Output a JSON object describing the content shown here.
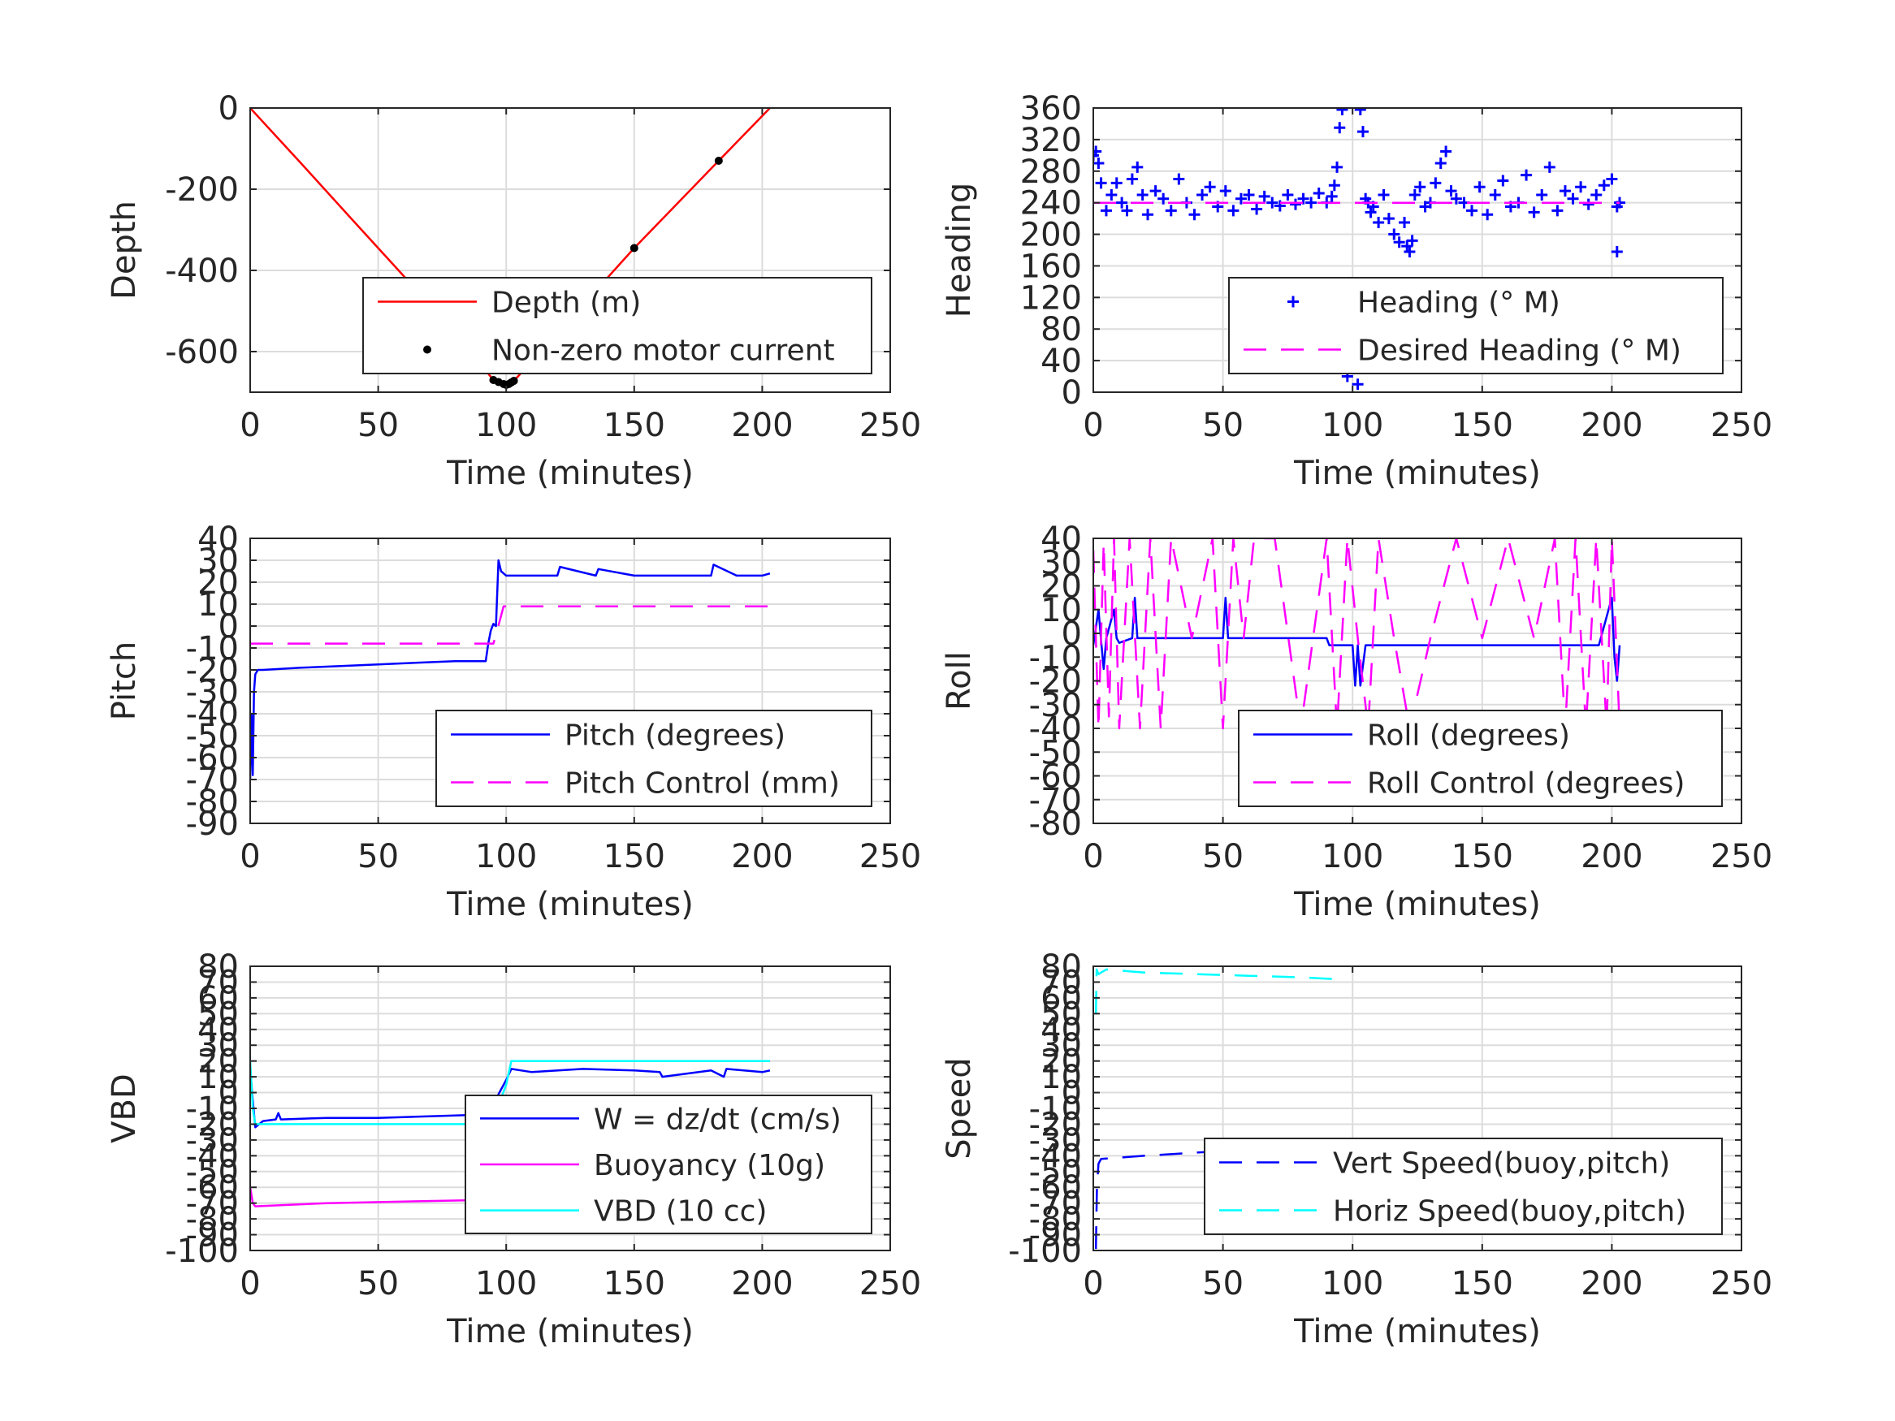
{
  "colors": {
    "red": "#ff0000",
    "blue": "#0000ff",
    "magenta": "#ff00ff",
    "cyan": "#00ffff",
    "black": "#000000",
    "grid": "#dcdcdc",
    "axis": "#262626"
  },
  "chart_data": [
    {
      "id": "depth",
      "type": "line",
      "xlabel": "Time (minutes)",
      "ylabel": "Depth",
      "xlim": [
        0,
        250
      ],
      "ylim": [
        -700,
        0
      ],
      "xticks": [
        0,
        50,
        100,
        150,
        200,
        250
      ],
      "xtick_labels": [
        "0",
        "50",
        "100",
        "150",
        "200",
        "250"
      ],
      "yticks": [
        0,
        -200,
        -400,
        -600
      ],
      "ytick_labels": [
        "0",
        "-200",
        "-400",
        "-600"
      ],
      "grid": true,
      "legend_position": "bottom-right",
      "series": [
        {
          "name": "Depth (m)",
          "kind": "line",
          "color": "red",
          "dash": "solid",
          "x": [
            0,
            20,
            40,
            60,
            80,
            95,
            100,
            103,
            120,
            150,
            183,
            203
          ],
          "y": [
            0,
            -137,
            -276,
            -414,
            -552,
            -670,
            -680,
            -672,
            -555,
            -345,
            -130,
            0
          ]
        },
        {
          "name": "Non-zero motor current",
          "kind": "points",
          "color": "black",
          "x": [
            95,
            97,
            99,
            100,
            101,
            102,
            103,
            150,
            183
          ],
          "y": [
            -670,
            -675,
            -680,
            -682,
            -680,
            -676,
            -672,
            -345,
            -130
          ]
        }
      ]
    },
    {
      "id": "heading",
      "type": "scatter",
      "xlabel": "Time (minutes)",
      "ylabel": "Heading",
      "xlim": [
        0,
        250
      ],
      "ylim": [
        0,
        360
      ],
      "xticks": [
        0,
        50,
        100,
        150,
        200,
        250
      ],
      "xtick_labels": [
        "0",
        "50",
        "100",
        "150",
        "200",
        "250"
      ],
      "yticks": [
        0,
        40,
        80,
        120,
        160,
        200,
        240,
        280,
        320,
        360
      ],
      "ytick_labels": [
        "0",
        "40",
        "80",
        "120",
        "160",
        "200",
        "240",
        "280",
        "320",
        "360"
      ],
      "grid": true,
      "legend_position": "bottom-right",
      "series": [
        {
          "name": "Heading (° M)",
          "kind": "plus",
          "color": "blue",
          "x": [
            0,
            1,
            2,
            3,
            5,
            7,
            9,
            11,
            13,
            15,
            17,
            19,
            21,
            24,
            27,
            30,
            33,
            36,
            39,
            42,
            45,
            48,
            51,
            54,
            57,
            60,
            63,
            66,
            69,
            72,
            75,
            78,
            81,
            84,
            87,
            90,
            92,
            93,
            94,
            95,
            96,
            97,
            98,
            99,
            100,
            101,
            102,
            103,
            104,
            105,
            106,
            107,
            108,
            110,
            112,
            114,
            116,
            118,
            120,
            121,
            122,
            123,
            124,
            126,
            128,
            130,
            132,
            134,
            136,
            138,
            140,
            143,
            146,
            149,
            152,
            155,
            158,
            161,
            164,
            167,
            170,
            173,
            176,
            179,
            182,
            185,
            188,
            191,
            194,
            197,
            200,
            202,
            203
          ],
          "y": [
            300,
            305,
            290,
            265,
            230,
            250,
            265,
            240,
            230,
            270,
            285,
            250,
            225,
            255,
            245,
            230,
            270,
            240,
            225,
            250,
            260,
            235,
            255,
            230,
            245,
            250,
            232,
            248,
            240,
            236,
            250,
            238,
            245,
            240,
            252,
            240,
            248,
            262,
            285,
            335,
            358,
            60,
            20,
            75,
            40,
            80,
            10,
            358,
            330,
            245,
            240,
            228,
            235,
            215,
            250,
            220,
            200,
            190,
            215,
            185,
            178,
            192,
            250,
            260,
            235,
            240,
            265,
            290,
            305,
            255,
            245,
            240,
            230,
            260,
            225,
            250,
            268,
            235,
            240,
            275,
            228,
            250,
            285,
            230,
            255,
            245,
            260,
            238,
            250,
            262,
            270,
            235,
            240
          ]
        },
        {
          "name": "",
          "kind": "plus",
          "color": "blue",
          "x": [
            202
          ],
          "y": [
            178
          ]
        },
        {
          "name": "Desired Heading (° M)",
          "kind": "line",
          "color": "magenta",
          "dash": "dash",
          "x": [
            0,
            95,
            104,
            203
          ],
          "y": [
            240,
            240,
            240,
            240
          ]
        }
      ]
    },
    {
      "id": "pitch",
      "type": "line",
      "xlabel": "Time (minutes)",
      "ylabel": "Pitch",
      "xlim": [
        0,
        250
      ],
      "ylim": [
        -90,
        40
      ],
      "xticks": [
        0,
        50,
        100,
        150,
        200,
        250
      ],
      "xtick_labels": [
        "0",
        "50",
        "100",
        "150",
        "200",
        "250"
      ],
      "yticks": [
        40,
        30,
        20,
        10,
        0,
        -10,
        -20,
        -30,
        -40,
        -50,
        -60,
        -70,
        -80,
        -90
      ],
      "ytick_labels": [
        "40",
        "30",
        "20",
        "10",
        "0",
        "-10",
        "-20",
        "-30",
        "-40",
        "-50",
        "-60",
        "-70",
        "-80",
        "-90"
      ],
      "grid": true,
      "legend_position": "bottom-right",
      "series": [
        {
          "name": "Pitch (degrees)",
          "kind": "line",
          "color": "blue",
          "dash": "solid",
          "x": [
            0,
            0.5,
            1,
            1.5,
            2,
            3,
            5,
            20,
            40,
            60,
            80,
            92,
            93,
            94,
            95,
            96,
            97,
            98,
            99,
            100,
            101,
            103,
            120,
            121,
            135,
            136,
            150,
            180,
            181,
            190,
            200,
            203
          ],
          "y": [
            -70,
            -40,
            -68,
            -30,
            -22,
            -20,
            -20,
            -19,
            -18,
            -17,
            -16,
            -16,
            -8,
            -2,
            1,
            0,
            30,
            25,
            24,
            23,
            23,
            23,
            23,
            27,
            23,
            26,
            23,
            23,
            28,
            23,
            23,
            24
          ]
        },
        {
          "name": "Pitch Control (mm)",
          "kind": "line",
          "color": "magenta",
          "dash": "dash",
          "x": [
            0,
            95,
            96,
            99,
            203
          ],
          "y": [
            -8,
            -8,
            -4,
            9,
            9
          ]
        }
      ]
    },
    {
      "id": "roll",
      "type": "line",
      "xlabel": "Time (minutes)",
      "ylabel": "Roll",
      "xlim": [
        0,
        250
      ],
      "ylim": [
        -80,
        40
      ],
      "xticks": [
        0,
        50,
        100,
        150,
        200,
        250
      ],
      "xtick_labels": [
        "0",
        "50",
        "100",
        "150",
        "200",
        "250"
      ],
      "yticks": [
        40,
        30,
        20,
        10,
        0,
        -10,
        -20,
        -30,
        -40,
        -50,
        -60,
        -70,
        -80
      ],
      "ytick_labels": [
        "40",
        "30",
        "20",
        "10",
        "0",
        "-10",
        "-20",
        "-30",
        "-40",
        "-50",
        "-60",
        "-70",
        "-80"
      ],
      "grid": true,
      "legend_position": "bottom-right",
      "series": [
        {
          "name": "Roll (degrees)",
          "kind": "line",
          "color": "blue",
          "dash": "solid",
          "x": [
            0,
            2,
            3,
            4,
            5,
            8,
            9,
            10,
            15,
            16,
            17,
            20,
            50,
            51,
            52,
            55,
            90,
            91,
            95,
            100,
            101,
            102,
            103,
            105,
            108,
            110,
            130,
            140,
            150,
            160,
            170,
            180,
            190,
            195,
            200,
            201,
            202,
            203
          ],
          "y": [
            -5,
            10,
            -3,
            -15,
            -2,
            10,
            -2,
            -4,
            -2,
            15,
            -2,
            -2,
            -2,
            15,
            -2,
            -2,
            -2,
            -5,
            -5,
            -5,
            -22,
            -5,
            -22,
            -5,
            -5,
            -5,
            -5,
            -5,
            -5,
            -5,
            -5,
            -5,
            -5,
            -5,
            15,
            -10,
            -20,
            -5
          ]
        },
        {
          "name": "Roll Control (degrees)",
          "kind": "line",
          "color": "magenta",
          "dash": "dash",
          "x": [
            0,
            2,
            4,
            6,
            8,
            10,
            14,
            18,
            22,
            26,
            30,
            38,
            46,
            50,
            54,
            58,
            62,
            70,
            80,
            90,
            94,
            98,
            102,
            106,
            110,
            116,
            122,
            130,
            140,
            150,
            160,
            170,
            178,
            182,
            186,
            190,
            194,
            198,
            200,
            203
          ],
          "y": [
            35,
            -40,
            38,
            -35,
            40,
            -40,
            40,
            -40,
            40,
            -40,
            40,
            -2,
            40,
            -40,
            40,
            -2,
            40,
            40,
            -40,
            40,
            -40,
            40,
            -2,
            -40,
            40,
            -2,
            -40,
            -2,
            40,
            -2,
            40,
            -2,
            40,
            -40,
            40,
            -40,
            40,
            -40,
            40,
            -40
          ]
        }
      ]
    },
    {
      "id": "vbd",
      "type": "line",
      "xlabel": "Time (minutes)",
      "ylabel": "VBD",
      "xlim": [
        0,
        250
      ],
      "ylim": [
        -100,
        80
      ],
      "xticks": [
        0,
        50,
        100,
        150,
        200,
        250
      ],
      "xtick_labels": [
        "0",
        "50",
        "100",
        "150",
        "200",
        "250"
      ],
      "yticks": [
        80,
        70,
        60,
        50,
        40,
        30,
        20,
        10,
        0,
        -10,
        -20,
        -30,
        -40,
        -50,
        -60,
        -70,
        -80,
        -90,
        -100
      ],
      "ytick_labels": [
        "80",
        "70",
        "60",
        "50",
        "40",
        "30",
        "20",
        "10",
        "0",
        "-10",
        "-20",
        "-30",
        "-40",
        "-50",
        "-60",
        "-70",
        "-80",
        "-90",
        "-100"
      ],
      "grid": true,
      "legend_position": "bottom-right",
      "series": [
        {
          "name": "W = dz/dt (cm/s)",
          "kind": "line",
          "color": "blue",
          "dash": "solid",
          "x": [
            0,
            1,
            2,
            5,
            10,
            11,
            12,
            30,
            50,
            70,
            90,
            92,
            94,
            96,
            100,
            102,
            110,
            130,
            150,
            160,
            161,
            180,
            185,
            186,
            200,
            203
          ],
          "y": [
            15,
            -5,
            -22,
            -18,
            -17,
            -13,
            -17,
            -16,
            -16,
            -15,
            -14,
            -17,
            -12,
            -4,
            8,
            15,
            13,
            15,
            14,
            13,
            10,
            14,
            10,
            15,
            13,
            14
          ]
        },
        {
          "name": "Buoyancy (10g)",
          "kind": "line",
          "color": "magenta",
          "dash": "solid",
          "x": [
            0,
            1,
            2,
            30,
            60,
            92
          ],
          "y": [
            -60,
            -70,
            -72,
            -70,
            -69,
            -68
          ]
        },
        {
          "name": "VBD (10 cc)",
          "kind": "line",
          "color": "cyan",
          "dash": "solid",
          "x": [
            0,
            1,
            2,
            30,
            60,
            92,
            94,
            96,
            100,
            102,
            150,
            203
          ],
          "y": [
            20,
            -10,
            -20,
            -20,
            -20,
            -20,
            -20,
            -12,
            5,
            20,
            20,
            20
          ]
        }
      ]
    },
    {
      "id": "speed",
      "type": "line",
      "xlabel": "Time (minutes)",
      "ylabel": "Speed",
      "xlim": [
        0,
        250
      ],
      "ylim": [
        -100,
        80
      ],
      "xticks": [
        0,
        50,
        100,
        150,
        200,
        250
      ],
      "xtick_labels": [
        "0",
        "50",
        "100",
        "150",
        "200",
        "250"
      ],
      "yticks": [
        80,
        70,
        60,
        50,
        40,
        30,
        20,
        10,
        0,
        -10,
        -20,
        -30,
        -40,
        -50,
        -60,
        -70,
        -80,
        -90,
        -100
      ],
      "ytick_labels": [
        "80",
        "70",
        "60",
        "50",
        "40",
        "30",
        "20",
        "10",
        "0",
        "-10",
        "-20",
        "-30",
        "-40",
        "-50",
        "-60",
        "-70",
        "-80",
        "-90",
        "-100"
      ],
      "grid": true,
      "legend_position": "bottom-right",
      "series": [
        {
          "name": "Vert Speed(buoy,pitch)",
          "kind": "line",
          "color": "blue",
          "dash": "dash",
          "x": [
            1,
            1.2,
            1.4,
            2,
            3,
            20,
            40,
            60,
            80,
            92
          ],
          "y": [
            -99,
            -80,
            -60,
            -45,
            -42,
            -40,
            -38,
            -36,
            -35,
            -35
          ]
        },
        {
          "name": "Horiz Speed(buoy,pitch)",
          "kind": "line",
          "color": "cyan",
          "dash": "dash",
          "x": [
            1,
            1.3,
            2,
            5,
            20,
            40,
            60,
            80,
            92
          ],
          "y": [
            50,
            78,
            75,
            78,
            76,
            75,
            74,
            73,
            72
          ]
        }
      ]
    }
  ]
}
